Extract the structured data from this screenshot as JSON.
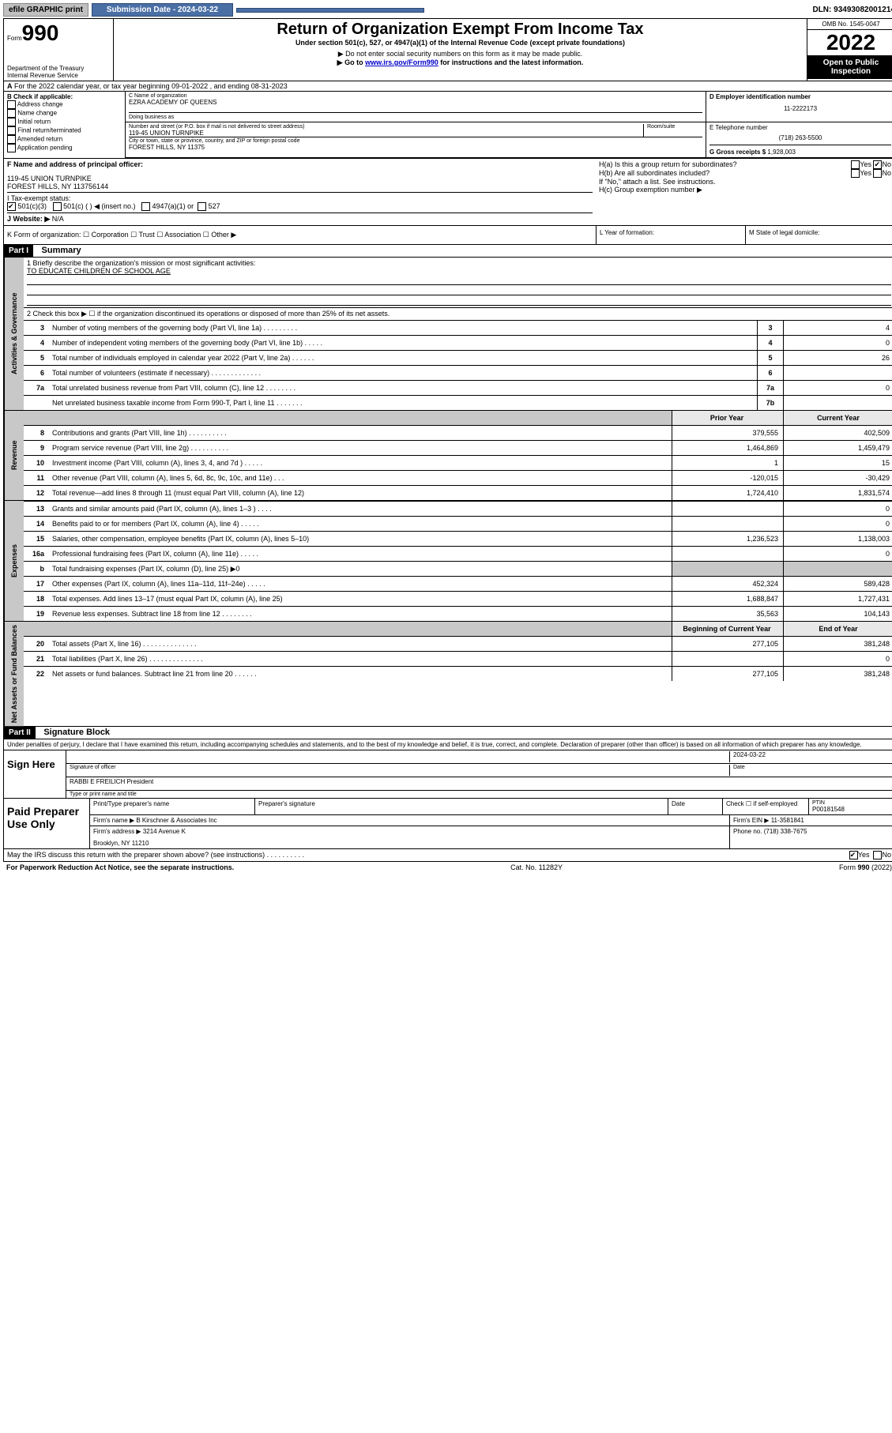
{
  "topbar": {
    "efile": "efile GRAPHIC print",
    "submission_label": "Submission Date - 2024-03-22",
    "dln": "DLN: 93493082001214"
  },
  "header": {
    "form_word": "Form",
    "form_num": "990",
    "dept": "Department of the Treasury",
    "irs": "Internal Revenue Service",
    "title": "Return of Organization Exempt From Income Tax",
    "sub1": "Under section 501(c), 527, or 4947(a)(1) of the Internal Revenue Code (except private foundations)",
    "sub2": "▶ Do not enter social security numbers on this form as it may be made public.",
    "sub3_pre": "▶ Go to ",
    "sub3_link": "www.irs.gov/Form990",
    "sub3_post": " for instructions and the latest information.",
    "omb": "OMB No. 1545-0047",
    "year": "2022",
    "open": "Open to Public Inspection"
  },
  "line_a": "For the 2022 calendar year, or tax year beginning 09-01-2022    , and ending 08-31-2023",
  "box_b": {
    "title": "B Check if applicable:",
    "opts": [
      "Address change",
      "Name change",
      "Initial return",
      "Final return/terminated",
      "Amended return",
      "Application pending"
    ]
  },
  "box_c": {
    "label_name": "C Name of organization",
    "org": "EZRA ACADEMY OF QUEENS",
    "dba_label": "Doing business as",
    "addr_label": "Number and street (or P.O. box if mail is not delivered to street address)",
    "room_label": "Room/suite",
    "addr": "119-45 UNION TURNPIKE",
    "city_label": "City or town, state or province, country, and ZIP or foreign postal code",
    "city": "FOREST HILLS, NY  11375"
  },
  "box_d": {
    "label": "D Employer identification number",
    "ein": "11-2222173"
  },
  "box_e": {
    "label": "E Telephone number",
    "phone": "(718) 263-5500"
  },
  "box_g": {
    "label": "G Gross receipts $",
    "val": "1,928,003"
  },
  "box_f": {
    "label": "F  Name and address of principal officer:",
    "l1": "119-45 UNION TURNPIKE",
    "l2": "FOREST HILLS, NY  113756144"
  },
  "box_h": {
    "a": "H(a)  Is this a group return for subordinates?",
    "b": "H(b)  Are all subordinates included?",
    "note": "If \"No,\" attach a list. See instructions.",
    "c": "H(c)  Group exemption number ▶"
  },
  "box_i": {
    "label": "I   Tax-exempt status:",
    "o1": "501(c)(3)",
    "o2": "501(c) (  ) ◀ (insert no.)",
    "o3": "4947(a)(1) or",
    "o4": "527"
  },
  "box_j": {
    "label": "J   Website: ▶",
    "val": "N/A"
  },
  "box_k": "K Form of organization:   ☐ Corporation   ☐ Trust   ☐ Association   ☐ Other ▶",
  "box_l": "L Year of formation:",
  "box_m": "M State of legal domicile:",
  "part1": {
    "hdr": "Part I",
    "title": "Summary",
    "l1_label": "1   Briefly describe the organization's mission or most significant activities:",
    "l1_val": "TO EDUCATE CHILDREN OF SCHOOL AGE",
    "l2": "2   Check this box ▶ ☐  if the organization discontinued its operations or disposed of more than 25% of its net assets."
  },
  "tabs": {
    "gov": "Activities & Governance",
    "rev": "Revenue",
    "exp": "Expenses",
    "net": "Net Assets or Fund Balances"
  },
  "govrows": [
    {
      "n": "3",
      "t": "Number of voting members of the governing body (Part VI, line 1a)   .    .    .    .    .    .    .    .    .",
      "b": "3",
      "v": "4"
    },
    {
      "n": "4",
      "t": "Number of independent voting members of the governing body (Part VI, line 1b)   .    .    .    .    .",
      "b": "4",
      "v": "0"
    },
    {
      "n": "5",
      "t": "Total number of individuals employed in calendar year 2022 (Part V, line 2a)   .    .    .    .    .    .",
      "b": "5",
      "v": "26"
    },
    {
      "n": "6",
      "t": "Total number of volunteers (estimate if necessary)   .    .    .    .    .    .    .    .    .    .    .    .    .",
      "b": "6",
      "v": ""
    },
    {
      "n": "7a",
      "t": "Total unrelated business revenue from Part VIII, column (C), line 12   .    .    .    .    .    .    .    .",
      "b": "7a",
      "v": "0"
    },
    {
      "n": "",
      "t": "Net unrelated business taxable income from Form 990-T, Part I, line 11   .    .    .    .    .    .    .",
      "b": "7b",
      "v": ""
    }
  ],
  "colhdr": {
    "prior": "Prior Year",
    "curr": "Current Year"
  },
  "revrows": [
    {
      "n": "8",
      "t": "Contributions and grants (Part VIII, line 1h)   .    .    .    .    .    .    .    .    .    .",
      "p": "379,555",
      "c": "402,509"
    },
    {
      "n": "9",
      "t": "Program service revenue (Part VIII, line 2g)   .    .    .    .    .    .    .    .    .    .",
      "p": "1,464,869",
      "c": "1,459,479"
    },
    {
      "n": "10",
      "t": "Investment income (Part VIII, column (A), lines 3, 4, and 7d )   .    .    .    .    .",
      "p": "1",
      "c": "15"
    },
    {
      "n": "11",
      "t": "Other revenue (Part VIII, column (A), lines 5, 6d, 8c, 9c, 10c, and 11e)   .    .    .",
      "p": "-120,015",
      "c": "-30,429"
    },
    {
      "n": "12",
      "t": "Total revenue—add lines 8 through 11 (must equal Part VIII, column (A), line 12)",
      "p": "1,724,410",
      "c": "1,831,574"
    }
  ],
  "exprows": [
    {
      "n": "13",
      "t": "Grants and similar amounts paid (Part IX, column (A), lines 1–3 )   .    .    .    .",
      "p": "",
      "c": "0"
    },
    {
      "n": "14",
      "t": "Benefits paid to or for members (Part IX, column (A), line 4)   .    .    .    .    .",
      "p": "",
      "c": "0"
    },
    {
      "n": "15",
      "t": "Salaries, other compensation, employee benefits (Part IX, column (A), lines 5–10)",
      "p": "1,236,523",
      "c": "1,138,003"
    },
    {
      "n": "16a",
      "t": "Professional fundraising fees (Part IX, column (A), line 11e)   .    .    .    .    .",
      "p": "",
      "c": "0"
    },
    {
      "n": "b",
      "t": "Total fundraising expenses (Part IX, column (D), line 25) ▶0",
      "p": "GRAY",
      "c": "GRAY"
    },
    {
      "n": "17",
      "t": "Other expenses (Part IX, column (A), lines 11a–11d, 11f–24e)   .    .    .    .    .",
      "p": "452,324",
      "c": "589,428"
    },
    {
      "n": "18",
      "t": "Total expenses. Add lines 13–17 (must equal Part IX, column (A), line 25)",
      "p": "1,688,847",
      "c": "1,727,431"
    },
    {
      "n": "19",
      "t": "Revenue less expenses. Subtract line 18 from line 12   .    .    .    .    .    .    .    .",
      "p": "35,563",
      "c": "104,143"
    }
  ],
  "nethdrs": {
    "beg": "Beginning of Current Year",
    "end": "End of Year"
  },
  "netrows": [
    {
      "n": "20",
      "t": "Total assets (Part X, line 16)   .    .    .    .    .    .    .    .    .    .    .    .    .    .",
      "p": "277,105",
      "c": "381,248"
    },
    {
      "n": "21",
      "t": "Total liabilities (Part X, line 26)   .    .    .    .    .    .    .    .    .    .    .    .    .    .",
      "p": "",
      "c": "0"
    },
    {
      "n": "22",
      "t": "Net assets or fund balances. Subtract line 21 from line 20   .    .    .    .    .    .",
      "p": "277,105",
      "c": "381,248"
    }
  ],
  "part2": {
    "hdr": "Part II",
    "title": "Signature Block",
    "decl": "Under penalties of perjury, I declare that I have examined this return, including accompanying schedules and statements, and to the best of my knowledge and belief, it is true, correct, and complete. Declaration of preparer (other than officer) is based on all information of which preparer has any knowledge."
  },
  "sign": {
    "here": "Sign Here",
    "sig_label": "Signature of officer",
    "date_label": "Date",
    "date": "2024-03-22",
    "name": "RABBI E FREILICH  President",
    "name_label": "Type or print name and title"
  },
  "paid": {
    "label": "Paid Preparer Use Only",
    "h_name": "Print/Type preparer's name",
    "h_sig": "Preparer's signature",
    "h_date": "Date",
    "h_check": "Check ☐ if self-employed",
    "h_ptin": "PTIN",
    "ptin": "P00181548",
    "firm_name_l": "Firm's name    ▶",
    "firm_name": "B Kirschner & Associates Inc",
    "firm_ein_l": "Firm's EIN ▶",
    "firm_ein": "11-3581841",
    "firm_addr_l": "Firm's address ▶",
    "firm_addr1": "3214 Avenue K",
    "firm_addr2": "Brooklyn, NY  11210",
    "phone_l": "Phone no.",
    "phone": "(718) 338-7675"
  },
  "discuss": "May the IRS discuss this return with the preparer shown above? (see instructions)   .    .    .    .    .    .    .    .    .    .",
  "footer": {
    "left": "For Paperwork Reduction Act Notice, see the separate instructions.",
    "mid": "Cat. No. 11282Y",
    "right": "Form 990 (2022)"
  },
  "yesno": {
    "yes": "Yes",
    "no": "No"
  }
}
